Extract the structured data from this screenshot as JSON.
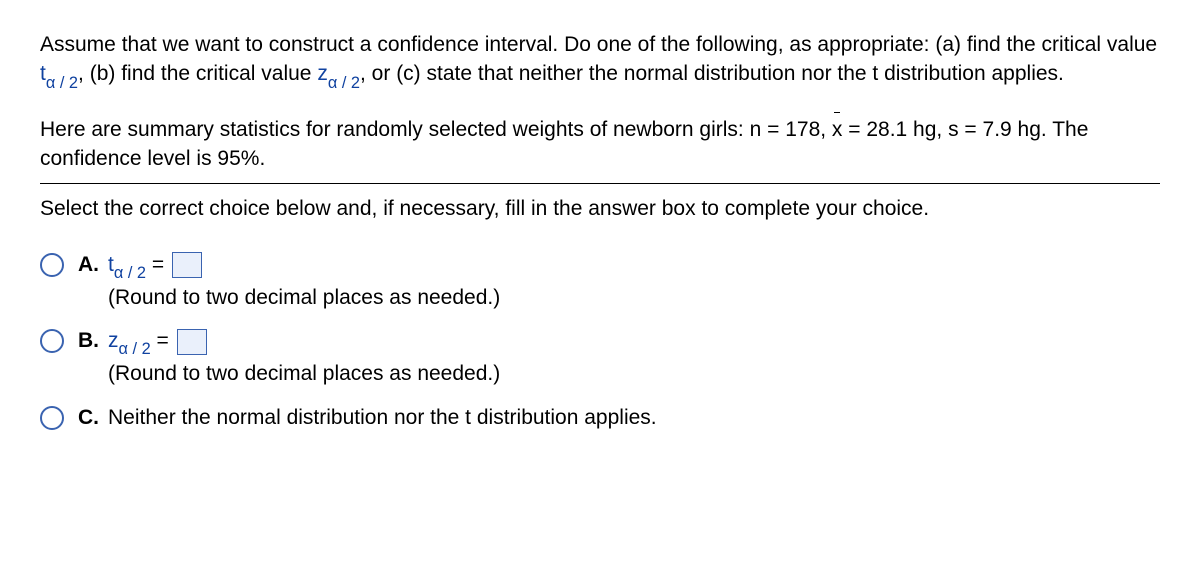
{
  "problem": {
    "line1_part1": "Assume that we want to construct a confidence interval. Do one of the following, as appropriate: (a) find the critical value ",
    "t_symbol_base": "t",
    "t_symbol_sub": "α / 2",
    "line1_part2": ", (b) find the critical value ",
    "z_symbol_base": "z",
    "z_symbol_sub": "α / 2",
    "line1_part3": ", or (c) state that neither the normal distribution nor the t distribution applies."
  },
  "stats": {
    "part1": "Here are summary statistics for randomly selected weights of newborn girls: n = 178, ",
    "xbar": "x",
    "part2": " = 28.1 hg, s = 7.9 hg. The confidence level is 95%."
  },
  "instruction": "Select the correct choice below and, if necessary, fill in the answer box to complete your choice.",
  "choices": {
    "a": {
      "label": "A.",
      "var_base": "t",
      "var_sub": "α / 2",
      "eq": " = ",
      "round": "(Round to two decimal places as needed.)"
    },
    "b": {
      "label": "B.",
      "var_base": "z",
      "var_sub": "α / 2",
      "eq": " = ",
      "round": "(Round to two decimal places as needed.)"
    },
    "c": {
      "label": "C.",
      "text": "Neither the normal distribution nor the t distribution applies."
    }
  },
  "colors": {
    "link": "#1042a0",
    "radio_border": "#3a63b0",
    "box_fill": "#eaf0fb"
  }
}
